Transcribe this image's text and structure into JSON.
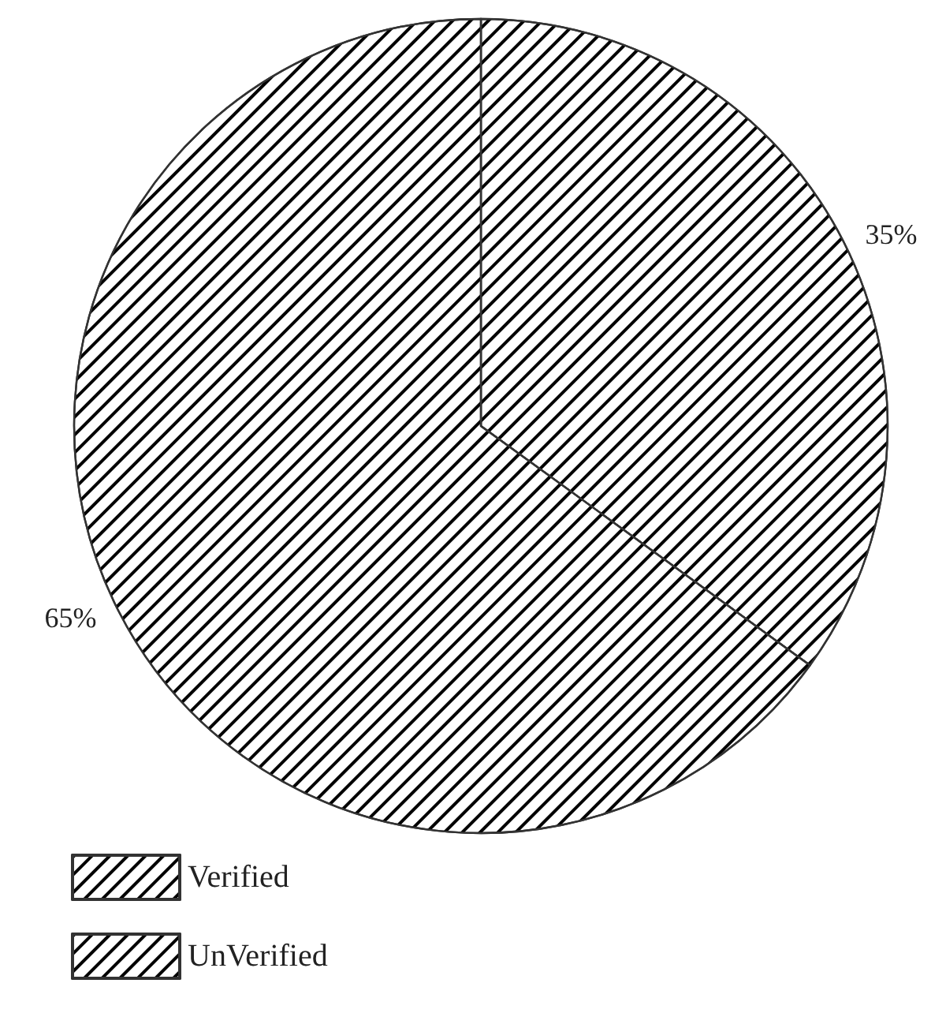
{
  "chart_data": {
    "type": "pie",
    "categories": [
      "Verified",
      "UnVerified"
    ],
    "values": [
      35,
      65
    ],
    "value_labels": [
      "35%",
      "65%"
    ],
    "colors": [
      "#ffffff",
      "#ffffff"
    ],
    "legend": "bottom left"
  }
}
